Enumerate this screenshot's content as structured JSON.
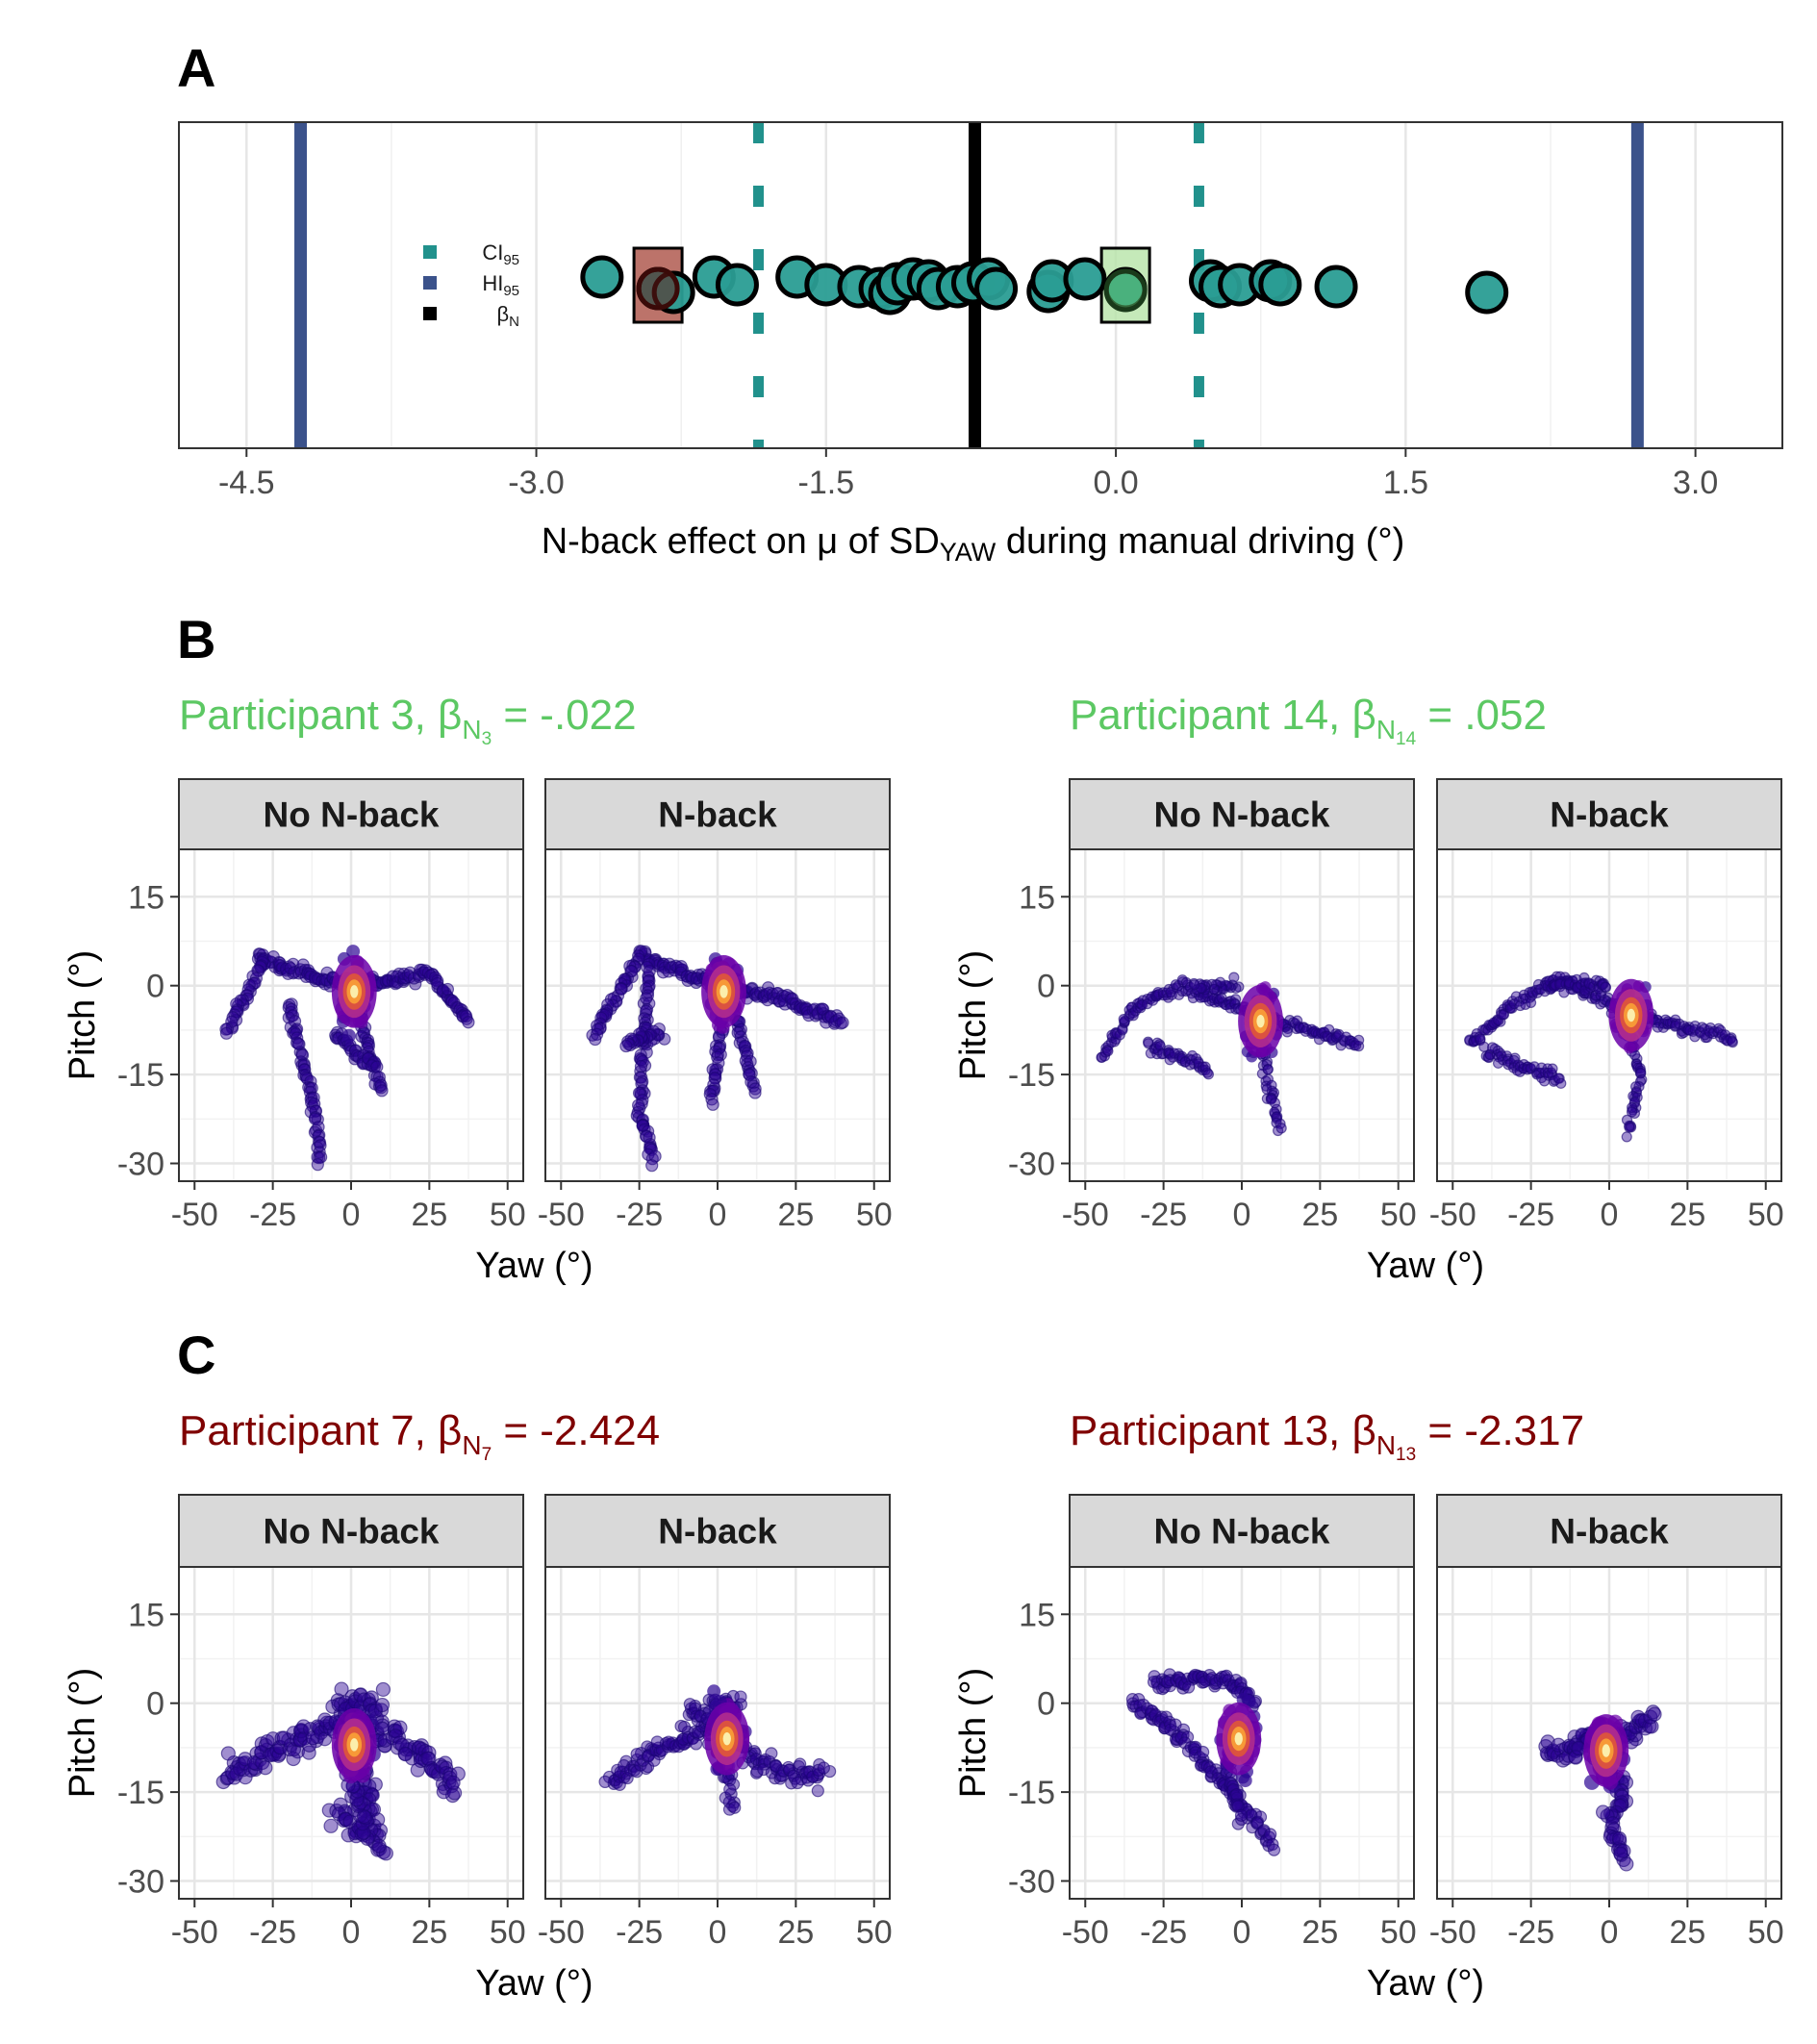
{
  "panels": {
    "a": "A",
    "b": "B",
    "c": "C"
  },
  "colors": {
    "ci": "#21918c",
    "hi": "#3b528b",
    "beta": "#000000",
    "point": "#2a9d94",
    "green_title": "#5cc863",
    "red_title": "#7f0000",
    "highlight_green": "#b6e3a8",
    "highlight_red": "#b05a50"
  },
  "chart_data": [
    {
      "type": "scatter",
      "panel": "A",
      "xlabel_prefix": "N-back effect on μ of SD",
      "xlabel_sub": "YAW",
      "xlabel_suffix": " during manual driving (°)",
      "xlim": [
        -4.85,
        3.45
      ],
      "xticks": [
        -4.5,
        -3.0,
        -1.5,
        0.0,
        1.5,
        3.0
      ],
      "xtick_labels": [
        "-4.5",
        "-3.0",
        "-1.5",
        "0.0",
        "1.5",
        "3.0"
      ],
      "lines": {
        "hi95": [
          -4.22,
          2.7
        ],
        "ci95": [
          -1.85,
          0.43
        ],
        "beta_n": -0.73
      },
      "legend": [
        {
          "key": "ci",
          "base": "CI",
          "sub": "95"
        },
        {
          "key": "hi",
          "base": "HI",
          "sub": "95"
        },
        {
          "key": "beta",
          "base": "β",
          "sub": "N"
        }
      ],
      "points": [
        -2.66,
        -2.37,
        -2.29,
        -2.08,
        -1.96,
        -1.65,
        -1.5,
        -1.33,
        -1.22,
        -1.17,
        -1.13,
        -1.05,
        -0.97,
        -0.92,
        -0.82,
        -0.74,
        -0.66,
        -0.62,
        -0.35,
        -0.33,
        -0.16,
        0.05,
        0.49,
        0.54,
        0.64,
        0.8,
        0.85,
        1.14,
        1.92
      ],
      "highlight": [
        {
          "x": -2.37,
          "group": "red"
        },
        {
          "x": 0.05,
          "group": "green"
        }
      ]
    },
    {
      "type": "scatter",
      "panel": "B",
      "participant_label": "Participant 3, ",
      "beta_sub": "N",
      "beta_subsub": "3",
      "value_label": " = -.022",
      "color_group": "green",
      "facets": [
        "No N-back",
        "N-back"
      ],
      "xlabel": "Yaw (°)",
      "ylabel": "Pitch (°)",
      "xlim": [
        -55,
        55
      ],
      "ylim": [
        -33,
        23
      ],
      "xticks": [
        -50,
        -25,
        0,
        25,
        50
      ],
      "yticks": [
        15,
        0,
        -15,
        -30
      ],
      "xtick_labels": [
        "-50",
        "-25",
        "0",
        "25",
        "50"
      ],
      "ytick_labels": [
        "15",
        "0",
        "-15",
        "-30"
      ],
      "density_peak": [
        [
          1,
          -1
        ],
        [
          2,
          -1
        ]
      ]
    },
    {
      "type": "scatter",
      "panel": "B",
      "participant_label": "Participant 14, ",
      "beta_sub": "N",
      "beta_subsub": "14",
      "value_label": " = .052",
      "color_group": "green",
      "facets": [
        "No N-back",
        "N-back"
      ],
      "xlabel": "Yaw (°)",
      "ylabel": "Pitch (°)",
      "xlim": [
        -55,
        55
      ],
      "ylim": [
        -33,
        23
      ],
      "xticks": [
        -50,
        -25,
        0,
        25,
        50
      ],
      "yticks": [
        15,
        0,
        -15,
        -30
      ],
      "xtick_labels": [
        "-50",
        "-25",
        "0",
        "25",
        "50"
      ],
      "ytick_labels": [
        "15",
        "0",
        "-15",
        "-30"
      ],
      "density_peak": [
        [
          6,
          -6
        ],
        [
          7,
          -5
        ]
      ]
    },
    {
      "type": "scatter",
      "panel": "C",
      "participant_label": "Participant 7, ",
      "beta_sub": "N",
      "beta_subsub": "7",
      "value_label": " = -2.424",
      "color_group": "red",
      "facets": [
        "No N-back",
        "N-back"
      ],
      "xlabel": "Yaw (°)",
      "ylabel": "Pitch (°)",
      "xlim": [
        -55,
        55
      ],
      "ylim": [
        -33,
        23
      ],
      "xticks": [
        -50,
        -25,
        0,
        25,
        50
      ],
      "yticks": [
        15,
        0,
        -15,
        -30
      ],
      "xtick_labels": [
        "-50",
        "-25",
        "0",
        "25",
        "50"
      ],
      "ytick_labels": [
        "15",
        "0",
        "-15",
        "-30"
      ],
      "density_peak": [
        [
          1,
          -7
        ],
        [
          3,
          -6
        ]
      ]
    },
    {
      "type": "scatter",
      "panel": "C",
      "participant_label": "Participant 13, ",
      "beta_sub": "N",
      "beta_subsub": "13",
      "value_label": " = -2.317",
      "color_group": "red",
      "facets": [
        "No N-back",
        "N-back"
      ],
      "xlabel": "Yaw (°)",
      "ylabel": "Pitch (°)",
      "xlim": [
        -55,
        55
      ],
      "ylim": [
        -33,
        23
      ],
      "xticks": [
        -50,
        -25,
        0,
        25,
        50
      ],
      "yticks": [
        15,
        0,
        -15,
        -30
      ],
      "xtick_labels": [
        "-50",
        "-25",
        "0",
        "25",
        "50"
      ],
      "ytick_labels": [
        "15",
        "0",
        "-15",
        "-30"
      ],
      "density_peak": [
        [
          -1,
          -6
        ],
        [
          -1,
          -8
        ]
      ]
    }
  ]
}
